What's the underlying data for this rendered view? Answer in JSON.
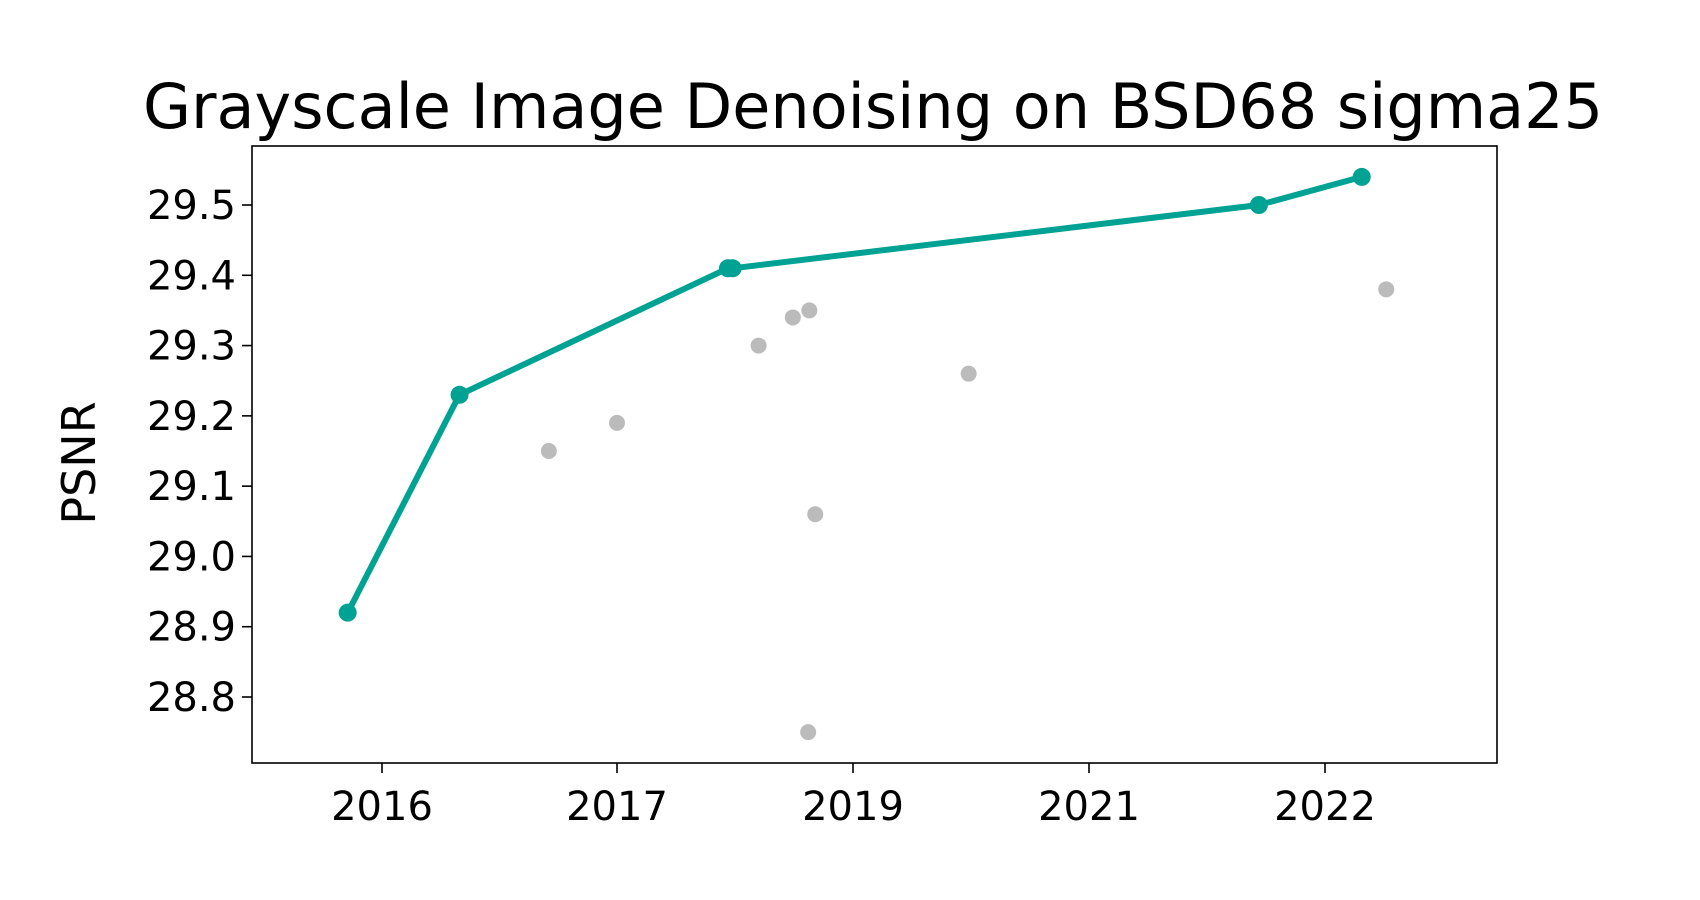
{
  "chart_data": {
    "type": "scatter",
    "title": "Grayscale Image Denoising on BSD68 sigma25",
    "xlabel": "",
    "ylabel": "PSNR",
    "x_ticks": [
      {
        "value": 2016,
        "label": "2016"
      },
      {
        "value": 2017,
        "label": "2017"
      },
      {
        "value": 2019,
        "label": "2019"
      },
      {
        "value": 2021,
        "label": "2021"
      },
      {
        "value": 2022,
        "label": "2022"
      }
    ],
    "y_ticks": [
      28.8,
      28.9,
      29.0,
      29.1,
      29.2,
      29.3,
      29.4,
      29.5
    ],
    "ylim": [
      28.71,
      29.585
    ],
    "grid": false,
    "series": [
      {
        "color": "#00a293",
        "style": "line-with-markers",
        "points": [
          {
            "x": 2015.74,
            "y": 28.92
          },
          {
            "x": 2016.33,
            "y": 29.23
          },
          {
            "x": 2017.94,
            "y": 29.41
          },
          {
            "x": 2017.98,
            "y": 29.41
          },
          {
            "x": 2021.72,
            "y": 29.5
          },
          {
            "x": 2022.21,
            "y": 29.54
          }
        ]
      },
      {
        "color": "#bbbbbb",
        "style": "markers",
        "points": [
          {
            "x": 2016.71,
            "y": 29.15
          },
          {
            "x": 2017.0,
            "y": 29.19
          },
          {
            "x": 2018.2,
            "y": 29.3
          },
          {
            "x": 2018.49,
            "y": 29.34
          },
          {
            "x": 2018.63,
            "y": 29.35
          },
          {
            "x": 2018.62,
            "y": 28.75
          },
          {
            "x": 2018.68,
            "y": 29.06
          },
          {
            "x": 2019.98,
            "y": 29.26
          },
          {
            "x": 2022.35,
            "y": 29.38
          }
        ]
      }
    ]
  }
}
